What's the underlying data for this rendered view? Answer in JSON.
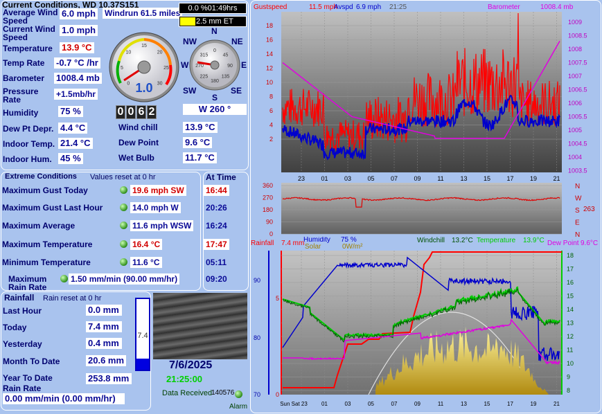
{
  "title": "Current Conditions, WD 10.37S151",
  "windrun": "Windrun 61.5 miles",
  "sunshine": "0.0 %01:49hrs",
  "et": "2.5 mm ET",
  "current": {
    "avg_wind_label": "Average Wind Speed",
    "avg_wind": "6.0 mph",
    "cur_wind_label": "Current Wind Speed",
    "cur_wind": "1.0 mph",
    "temp_label": "Temperature",
    "temp": "13.9 °C",
    "temp_rate_label": "Temp Rate",
    "temp_rate": "-0.7 °C /hr",
    "baro_label": "Barometer",
    "baro": "1008.4 mb",
    "prate_label": "Pressure Rate",
    "prate": "+1.5mb/hr",
    "hum_label": "Humidity",
    "hum": "75 %",
    "dewdep_label": "Dew Pt Depr.",
    "dewdep": "4.4 °C",
    "intemp_label": "Indoor Temp.",
    "intemp": "21.4 °C",
    "inhum_label": "Indoor Hum.",
    "inhum": "45 %",
    "windchill_label": "Wind chill",
    "windchill": "13.9 °C",
    "dewpoint_label": "Dew Point",
    "dewpoint": "9.6 °C",
    "wetbulb_label": "Wet Bulb",
    "wetbulb": "11.7 °C"
  },
  "speed_gauge": {
    "value": "1.0",
    "ticks": [
      "0",
      "5",
      "10",
      "15",
      "20",
      "25",
      "30"
    ]
  },
  "counter": [
    "0",
    "0",
    "6",
    "2"
  ],
  "compass": {
    "n": "N",
    "ne": "NE",
    "e": "E",
    "se": "SE",
    "s": "S",
    "sw": "SW",
    "w": "W",
    "nw": "NW",
    "dir": "W 260 °",
    "ticks": [
      "0",
      "45",
      "90",
      "135",
      "180",
      "225",
      "270",
      "315"
    ]
  },
  "extremes": {
    "title": "Extreme Conditions",
    "reset": "Values reset at 0 hr",
    "at_time": "At Time",
    "rows": [
      {
        "label": "Maximum Gust Today",
        "value": "19.6 mph  SW",
        "time": "16:44"
      },
      {
        "label": "Maximum Gust Last Hour",
        "value": "14.0 mph  W",
        "time": "20:26"
      },
      {
        "label": "Maximum Average",
        "value": "11.6 mph WSW",
        "time": "16:24"
      },
      {
        "label": "Maximum Temperature",
        "value": "16.4 °C",
        "time": "17:47"
      },
      {
        "label": "Minimum Temperature",
        "value": "11.6 °C",
        "time": "05:11"
      },
      {
        "label": "Maximum Rain Rate",
        "value": "1.50 mm/min (90.00 mm/hr)",
        "time": "09:20"
      }
    ]
  },
  "rain": {
    "title": "Rainfall",
    "reset": "Rain reset at 0 hr",
    "last_hour_label": "Last Hour",
    "last_hour": "0.0 mm",
    "today_label": "Today",
    "today": "7.4 mm",
    "yesterday_label": "Yesterday",
    "yesterday": "0.4 mm",
    "month_label": "Month To Date",
    "month": "20.6 mm",
    "year_label": "Year To Date",
    "year": "253.8 mm",
    "rate_label": "Rain Rate",
    "rate": "0.00 mm/min (0.00 mm/hr)",
    "tube_value": "7.4"
  },
  "date": "7/6/2025",
  "time": "21:25:00",
  "data_received_label": "Data Received",
  "data_received": "140576",
  "alarm": "Alarm",
  "chart1": {
    "gust_label": "Gustspeed",
    "gust_val": "11.5 mph",
    "avg_label": "Avspd",
    "avg_val": "6.9 mph",
    "time": "21:25",
    "baro_label": "Barometer",
    "baro_val": "1008.4 mb",
    "left_ticks": [
      "18",
      "16",
      "14",
      "12",
      "10",
      "8",
      "6",
      "4",
      "2"
    ],
    "right_ticks": [
      "1009",
      "1008.5",
      "1008",
      "1007.5",
      "1007",
      "1006.5",
      "1006",
      "1005.5",
      "1005",
      "1004.5",
      "1004",
      "1003.5"
    ],
    "x_ticks": [
      "23",
      "01",
      "03",
      "05",
      "07",
      "09",
      "11",
      "13",
      "15",
      "17",
      "19",
      "21"
    ]
  },
  "chart2": {
    "ticks": [
      "360",
      "270",
      "180",
      "90",
      "0"
    ],
    "dirs": [
      "N",
      "W",
      "S",
      "E",
      "N"
    ],
    "value": "263"
  },
  "chart3": {
    "rain_label": "Rainfall",
    "rain_val": "7.4 mm",
    "hum_label": "Humidity",
    "hum_val": "75 %",
    "solar_label": "Solar",
    "solar_val": "0W/m²",
    "wc_label": "Windchill",
    "wc_val": "13.2°C",
    "temp_label": "Temperature",
    "temp_val": "13.9°C",
    "dew_label": "Dew Point",
    "dew_val": "9.6°C",
    "hum_ticks": [
      "90",
      "80",
      "70"
    ],
    "rain_ticks": [
      "5",
      "0"
    ],
    "temp_ticks": [
      "18",
      "17",
      "16",
      "15",
      "14",
      "13",
      "12",
      "11",
      "10",
      "9",
      "8"
    ],
    "x_ticks": [
      "Sun Sat 23",
      "01",
      "03",
      "05",
      "07",
      "09",
      "11",
      "13",
      "15",
      "17",
      "19",
      "21"
    ]
  },
  "colors": {
    "gust": "#ff0000",
    "avg": "#0000cc",
    "baro": "#e000e0",
    "temp": "#00cc00",
    "windchill": "#007000",
    "rain": "#ff0000",
    "humidity": "#0000cc",
    "dew": "#e000e0",
    "solar": "#d4b000"
  }
}
